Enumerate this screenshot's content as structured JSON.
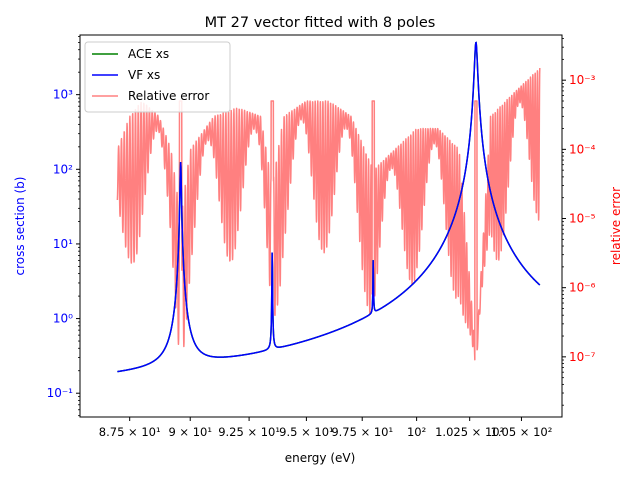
{
  "chart_data": {
    "type": "line",
    "title": "MT 27 vector fitted with 8 poles",
    "xlabel": "energy (eV)",
    "ylabel_left": "cross section (b)",
    "ylabel_right": "relative error",
    "xscale": "log",
    "yscale_left": "log",
    "yscale_right": "log",
    "xlim": [
      85.5,
      107.0
    ],
    "ylim_left": [
      0.048,
      6300
    ],
    "ylim_right": [
      1.35e-08,
      0.0045
    ],
    "legend_position": "upper-left",
    "x_ticks": [
      {
        "value": 87.5,
        "label": "8.75 × 10¹"
      },
      {
        "value": 90.0,
        "label": "9 × 10¹"
      },
      {
        "value": 92.5,
        "label": "9.25 × 10¹"
      },
      {
        "value": 95.0,
        "label": "9.5 × 10¹"
      },
      {
        "value": 97.5,
        "label": "9.75 × 10¹"
      },
      {
        "value": 100.0,
        "label": "10²"
      },
      {
        "value": 102.5,
        "label": "1.025 × 10²"
      },
      {
        "value": 105.0,
        "label": "1.05 × 10²"
      }
    ],
    "y_left_ticks": [
      {
        "value": 0.1,
        "label": "10⁻¹"
      },
      {
        "value": 1,
        "label": "10⁰"
      },
      {
        "value": 10,
        "label": "10¹"
      },
      {
        "value": 100,
        "label": "10²"
      },
      {
        "value": 1000,
        "label": "10³"
      }
    ],
    "y_right_ticks": [
      {
        "value": 1e-07,
        "label": "10⁻⁷"
      },
      {
        "value": 1e-06,
        "label": "10⁻⁶"
      },
      {
        "value": 1e-05,
        "label": "10⁻⁵"
      },
      {
        "value": 0.0001,
        "label": "10⁻⁴"
      },
      {
        "value": 0.001,
        "label": "10⁻³"
      }
    ],
    "resonances": [
      {
        "energy": 89.6,
        "peak_xs": 125
      },
      {
        "energy": 93.5,
        "peak_xs": 8
      },
      {
        "energy": 98.0,
        "peak_xs": 5.2
      },
      {
        "energy": 102.8,
        "peak_xs": 5000
      }
    ],
    "series": [
      {
        "name": "ACE xs",
        "color": "#008000",
        "axis": "left",
        "x": [
          87.0,
          88.0,
          88.5,
          89.0,
          89.3,
          89.5,
          89.6,
          89.7,
          89.9,
          90.3,
          91.0,
          92.0,
          93.0,
          93.4,
          93.5,
          93.6,
          94.0,
          95.0,
          96.0,
          97.0,
          97.8,
          98.0,
          98.2,
          99.0,
          100.0,
          101.0,
          102.0,
          102.5,
          102.8,
          103.1,
          103.5,
          104.0,
          105.0,
          105.9
        ],
        "y": [
          0.085,
          0.09,
          0.1,
          0.16,
          0.5,
          3.0,
          125,
          3.0,
          0.4,
          0.16,
          0.12,
          0.125,
          0.145,
          0.2,
          8,
          0.2,
          0.17,
          0.2,
          0.27,
          0.4,
          0.6,
          5.2,
          0.7,
          0.95,
          1.6,
          3.5,
          15,
          80,
          5000,
          80,
          15,
          6,
          2.2,
          1.25
        ]
      },
      {
        "name": "VF xs",
        "color": "#0000ff",
        "axis": "left",
        "x": [
          87.0,
          88.0,
          88.5,
          89.0,
          89.3,
          89.5,
          89.6,
          89.7,
          89.9,
          90.3,
          91.0,
          92.0,
          93.0,
          93.4,
          93.5,
          93.6,
          94.0,
          95.0,
          96.0,
          97.0,
          97.8,
          98.0,
          98.2,
          99.0,
          100.0,
          101.0,
          102.0,
          102.5,
          102.8,
          103.1,
          103.5,
          104.0,
          105.0,
          105.9
        ],
        "y": [
          0.085,
          0.09,
          0.1,
          0.16,
          0.5,
          3.0,
          125,
          3.0,
          0.4,
          0.16,
          0.12,
          0.125,
          0.145,
          0.2,
          8,
          0.2,
          0.17,
          0.2,
          0.27,
          0.4,
          0.6,
          5.2,
          0.7,
          0.95,
          1.6,
          3.5,
          15,
          80,
          5000,
          80,
          15,
          6,
          2.2,
          1.25
        ]
      },
      {
        "name": "Relative error",
        "color": "#ff8080",
        "axis": "right",
        "x": [
          87.0,
          87.5,
          88.0,
          88.7,
          89.2,
          89.6,
          90.0,
          91.0,
          92.0,
          93.0,
          93.5,
          94.0,
          95.0,
          96.0,
          97.0,
          98.0,
          99.0,
          100.0,
          101.0,
          102.0,
          102.8,
          103.5,
          104.5,
          105.9
        ],
        "y": [
          0.0001,
          0.0003,
          0.0005,
          0.0003,
          0.0001,
          1e-05,
          0.0001,
          0.0003,
          0.0004,
          0.0003,
          3e-05,
          0.0003,
          0.0005,
          0.0005,
          0.0003,
          5e-05,
          0.0001,
          0.0002,
          0.0002,
          0.0001,
          1e-07,
          0.0003,
          0.0006,
          0.0015
        ]
      }
    ]
  }
}
